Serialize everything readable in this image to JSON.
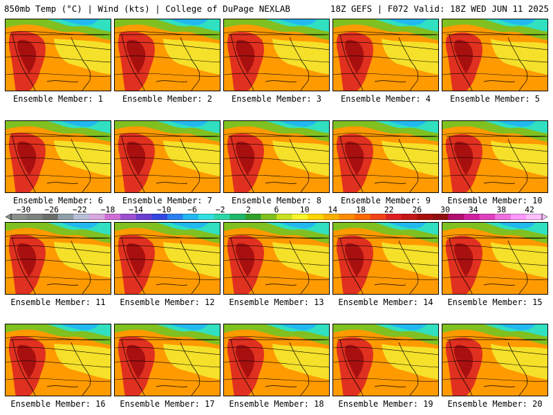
{
  "header": {
    "left": "850mb Temp (°C) | Wind (kts) | College of DuPage NEXLAB",
    "right": "18Z GEFS | F072 Valid: 18Z WED JUN 11 2025"
  },
  "panels": [
    {
      "label": "Ensemble Member: 1"
    },
    {
      "label": "Ensemble Member: 2"
    },
    {
      "label": "Ensemble Member: 3"
    },
    {
      "label": "Ensemble Member: 4"
    },
    {
      "label": "Ensemble Member: 5"
    },
    {
      "label": "Ensemble Member: 6"
    },
    {
      "label": "Ensemble Member: 7"
    },
    {
      "label": "Ensemble Member: 8"
    },
    {
      "label": "Ensemble Member: 9"
    },
    {
      "label": "Ensemble Member: 10"
    },
    {
      "label": "Ensemble Member: 11"
    },
    {
      "label": "Ensemble Member: 12"
    },
    {
      "label": "Ensemble Member: 13"
    },
    {
      "label": "Ensemble Member: 14"
    },
    {
      "label": "Ensemble Member: 15"
    },
    {
      "label": "Ensemble Member: 16"
    },
    {
      "label": "Ensemble Member: 17"
    },
    {
      "label": "Ensemble Member: 18"
    },
    {
      "label": "Ensemble Member: 19"
    },
    {
      "label": "Ensemble Member: 20"
    }
  ],
  "colorbar": {
    "labels": [
      "-30",
      "-26",
      "-22",
      "-18",
      "-14",
      "-10",
      "-6",
      "-2",
      "2",
      "6",
      "10",
      "14",
      "18",
      "22",
      "26",
      "30",
      "34",
      "38",
      "42"
    ],
    "colors": [
      "#8a8f8a",
      "#7e827e",
      "#6b6e6b",
      "#8f9fa8",
      "#b7c0d8",
      "#d8a8e0",
      "#cf6fd6",
      "#9e4fd0",
      "#6a3fd0",
      "#3348e0",
      "#2a80f0",
      "#22b8f0",
      "#30e0e0",
      "#2cd6a6",
      "#20b86a",
      "#33a02c",
      "#80c020",
      "#c8e020",
      "#f5f52a",
      "#ffd500",
      "#ffb000",
      "#ff8c00",
      "#ff6a00",
      "#f04418",
      "#e02020",
      "#c41818",
      "#a81010",
      "#901010",
      "#b01070",
      "#d020a0",
      "#e040c0",
      "#f070e0",
      "#ff99ff",
      "#ffc0ff"
    ]
  },
  "map_colors": {
    "cold": "#22b8f0",
    "cool": "#30e0c0",
    "mild": "#80c020",
    "warm": "#f5e02a",
    "hot": "#ff9a00",
    "very_hot": "#e03020",
    "extreme": "#a81010"
  }
}
